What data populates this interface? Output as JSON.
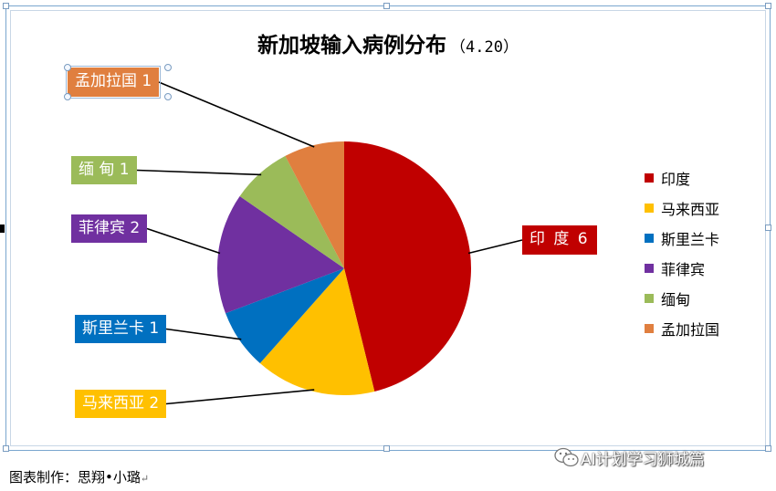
{
  "chart_data": {
    "type": "pie",
    "title": "新加坡输入病例分布",
    "subtitle": "（4.20）",
    "categories": [
      "印度",
      "马来西亚",
      "斯里兰卡",
      "菲律宾",
      "缅甸",
      "孟加拉国"
    ],
    "values": [
      6,
      2,
      1,
      2,
      1,
      1
    ],
    "colors": [
      "#c00000",
      "#ffc000",
      "#0070c0",
      "#7030a0",
      "#9bbb59",
      "#e07f3f"
    ],
    "data_labels": [
      {
        "category": "印度",
        "text": "印 度  6",
        "color": "#c00000"
      },
      {
        "category": "马来西亚",
        "text": "马来西亚 2",
        "color": "#ffc000"
      },
      {
        "category": "斯里兰卡",
        "text": "斯里兰卡 1",
        "color": "#0070c0"
      },
      {
        "category": "菲律宾",
        "text": "菲律宾 2",
        "color": "#7030a0"
      },
      {
        "category": "缅甸",
        "text": "缅 甸  1",
        "color": "#9bbb59"
      },
      {
        "category": "孟加拉国",
        "text": "孟加拉国 1",
        "color": "#e07f3f"
      }
    ],
    "legend": {
      "position": "right",
      "entries": [
        "印度",
        "马来西亚",
        "斯里兰卡",
        "菲律宾",
        "缅甸",
        "孟加拉国"
      ]
    }
  },
  "footer": {
    "credit": "图表制作：思翔•小璐",
    "credit_mark": "↵",
    "watermark": "AI计划学习狮城篇",
    "watermark_icon": "wechat-icon"
  }
}
